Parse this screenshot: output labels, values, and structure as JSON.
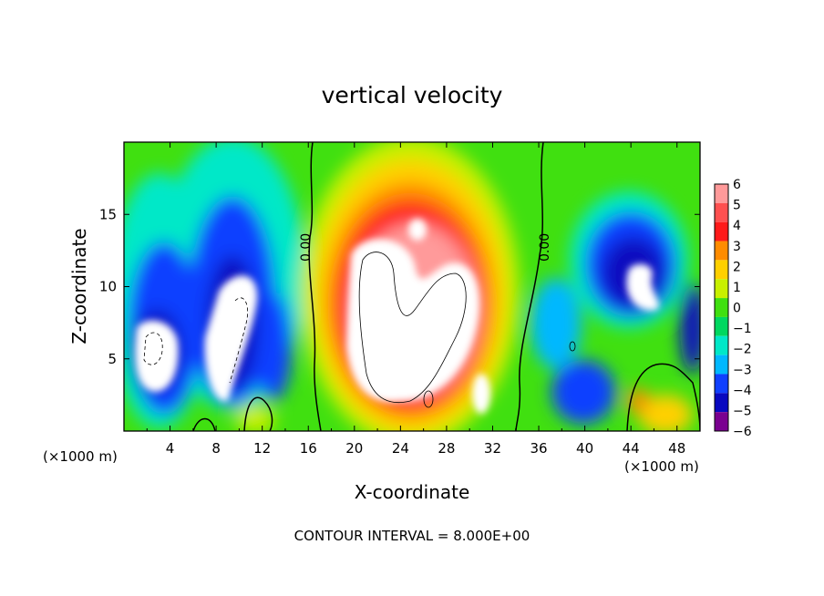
{
  "chart_data": {
    "type": "heatmap",
    "title": "vertical velocity",
    "xlabel": "X-coordinate",
    "ylabel": "Z-coordinate",
    "x_unit_left": "(×1000 m)",
    "x_unit_right": "(×1000 m)",
    "footer": "CONTOUR INTERVAL = 8.000E+00",
    "xlim": [
      0,
      50
    ],
    "ylim": [
      0,
      20
    ],
    "x_ticks": [
      "4",
      "8",
      "12",
      "16",
      "20",
      "24",
      "28",
      "32",
      "36",
      "40",
      "44",
      "48"
    ],
    "y_ticks": [
      "5",
      "10",
      "15"
    ],
    "colorbar": {
      "labels": [
        "6",
        "5",
        "4",
        "3",
        "2",
        "1",
        "0",
        "−1",
        "−2",
        "−3",
        "−4",
        "−5",
        "−6"
      ],
      "colors": [
        "#ff9a9a",
        "#ff5050",
        "#ff1a1a",
        "#ff8c00",
        "#ffd000",
        "#c8f000",
        "#40e010",
        "#00d860",
        "#00e8c8",
        "#00b8ff",
        "#1040ff",
        "#0808c0",
        "#7a0090"
      ]
    },
    "contour_labels": [
      "0.00",
      "0.00"
    ],
    "features": [
      {
        "kind": "updraft-core",
        "x": 24,
        "z": 9,
        "value": 6
      },
      {
        "kind": "downdraft",
        "x": 3,
        "z": 6,
        "value": -6
      },
      {
        "kind": "downdraft",
        "x": 9,
        "z": 8,
        "value": -6
      },
      {
        "kind": "downdraft",
        "x": 45,
        "z": 11,
        "value": -6
      },
      {
        "kind": "zero-contour",
        "x": 16.5,
        "z": 12
      },
      {
        "kind": "zero-contour",
        "x": 35.5,
        "z": 12
      }
    ]
  }
}
